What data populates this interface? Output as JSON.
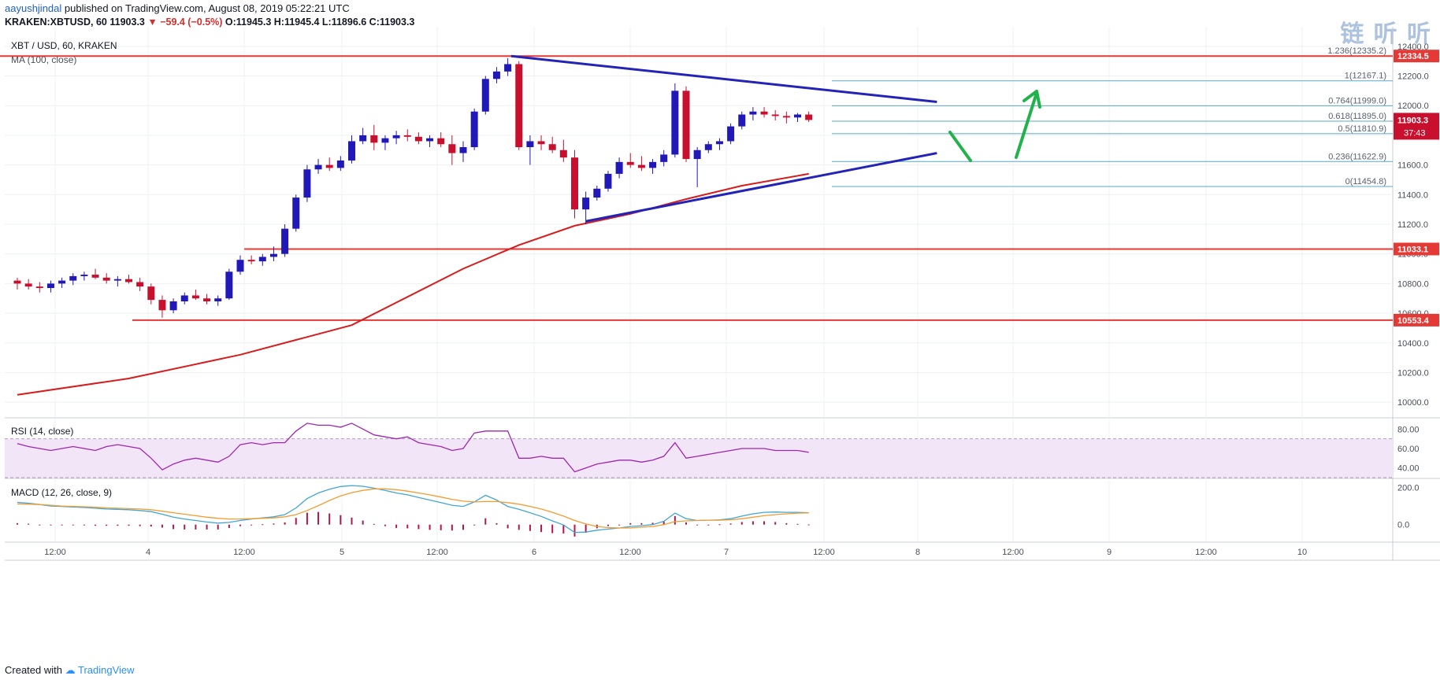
{
  "header": {
    "author": "aayushjindal",
    "published_text": "published on TradingView.com, August 08, 2019 05:22:21 UTC",
    "symbol_line": "KRAKEN:XBTUSD, 60",
    "last": "11903.3",
    "change": "▼ −59.4 (−0.5%)",
    "ohlc": "O:11945.3 H:11945.4 L:11896.6 C:11903.3"
  },
  "watermark": "链 听 听",
  "footer": {
    "created_with": "Created with",
    "brand": "TradingView"
  },
  "colors": {
    "up": "#2118b8",
    "down": "#c8102e",
    "ma": "#d81c1c",
    "trendline": "#2323b8",
    "hline": "#e53935",
    "fib": "#5aa9c8",
    "arrow": "#22b24c",
    "rsi_band": "#f3e5f8",
    "rsi_line": "#9c27b0",
    "macd": "#42a5d6",
    "signal": "#f39c32",
    "hist": "#b0184d"
  },
  "chart_data": {
    "type": "candlestick",
    "main_pane": {
      "title": "XBT / USD, 60, KRAKEN",
      "indicator": "MA (100, close)",
      "ylim": [
        9900,
        12500
      ],
      "y_ticks": [
        "10000.0",
        "10200.0",
        "10400.0",
        "10600.0",
        "10800.0",
        "11000.0",
        "11200.0",
        "11400.0",
        "11600.0",
        "11800.0",
        "12000.0",
        "12200.0",
        "12400.0"
      ],
      "x_ticks": [
        "12:00",
        "4",
        "12:00",
        "5",
        "12:00",
        "6",
        "12:00",
        "7",
        "12:00",
        "8",
        "12:00",
        "9",
        "12:00",
        "10"
      ],
      "last_price_label": "11903.3",
      "countdown_label": "37:43",
      "ohlc_pattern": [
        [
          10820,
          10840,
          10760,
          10800
        ],
        [
          10800,
          10830,
          10760,
          10780
        ],
        [
          10780,
          10810,
          10740,
          10770
        ],
        [
          10770,
          10820,
          10740,
          10800
        ],
        [
          10800,
          10840,
          10770,
          10820
        ],
        [
          10820,
          10870,
          10790,
          10850
        ],
        [
          10850,
          10880,
          10820,
          10860
        ],
        [
          10860,
          10900,
          10830,
          10840
        ],
        [
          10840,
          10870,
          10800,
          10820
        ],
        [
          10820,
          10850,
          10780,
          10830
        ],
        [
          10830,
          10860,
          10800,
          10810
        ],
        [
          10810,
          10840,
          10750,
          10780
        ],
        [
          10780,
          10800,
          10660,
          10690
        ],
        [
          10690,
          10720,
          10570,
          10620
        ],
        [
          10620,
          10700,
          10600,
          10680
        ],
        [
          10680,
          10740,
          10660,
          10720
        ],
        [
          10720,
          10760,
          10690,
          10700
        ],
        [
          10700,
          10730,
          10660,
          10680
        ],
        [
          10680,
          10720,
          10650,
          10700
        ],
        [
          10700,
          10900,
          10690,
          10880
        ],
        [
          10880,
          10990,
          10860,
          10960
        ],
        [
          10960,
          10990,
          10930,
          10950
        ],
        [
          10950,
          11000,
          10920,
          10980
        ],
        [
          10980,
          11050,
          10950,
          11000
        ],
        [
          11000,
          11200,
          10980,
          11170
        ],
        [
          11170,
          11400,
          11150,
          11380
        ],
        [
          11380,
          11600,
          11350,
          11570
        ],
        [
          11570,
          11640,
          11540,
          11600
        ],
        [
          11600,
          11650,
          11560,
          11580
        ],
        [
          11580,
          11660,
          11560,
          11630
        ],
        [
          11630,
          11800,
          11610,
          11760
        ],
        [
          11760,
          11850,
          11740,
          11800
        ],
        [
          11800,
          11870,
          11700,
          11750
        ],
        [
          11750,
          11800,
          11700,
          11780
        ],
        [
          11780,
          11830,
          11740,
          11800
        ],
        [
          11800,
          11840,
          11760,
          11790
        ],
        [
          11790,
          11820,
          11740,
          11760
        ],
        [
          11760,
          11800,
          11720,
          11780
        ],
        [
          11780,
          11820,
          11720,
          11740
        ],
        [
          11740,
          11800,
          11600,
          11680
        ],
        [
          11680,
          11760,
          11620,
          11720
        ],
        [
          11720,
          11980,
          11700,
          11960
        ],
        [
          11960,
          12200,
          11940,
          12180
        ],
        [
          12180,
          12260,
          12150,
          12230
        ],
        [
          12230,
          12320,
          12200,
          12280
        ],
        [
          12280,
          12300,
          11700,
          11720
        ],
        [
          11720,
          11800,
          11600,
          11760
        ],
        [
          11760,
          11800,
          11700,
          11740
        ],
        [
          11740,
          11790,
          11680,
          11700
        ],
        [
          11700,
          11770,
          11620,
          11650
        ],
        [
          11650,
          11700,
          11240,
          11300
        ],
        [
          11300,
          11420,
          11200,
          11380
        ],
        [
          11380,
          11460,
          11360,
          11440
        ],
        [
          11440,
          11560,
          11420,
          11540
        ],
        [
          11540,
          11650,
          11510,
          11620
        ],
        [
          11620,
          11680,
          11580,
          11600
        ],
        [
          11600,
          11660,
          11560,
          11580
        ],
        [
          11580,
          11640,
          11540,
          11620
        ],
        [
          11620,
          11700,
          11590,
          11670
        ],
        [
          11670,
          12150,
          11650,
          12100
        ],
        [
          12100,
          12130,
          11620,
          11640
        ],
        [
          11640,
          11720,
          11450,
          11700
        ],
        [
          11700,
          11760,
          11680,
          11740
        ],
        [
          11740,
          11780,
          11700,
          11760
        ],
        [
          11760,
          11880,
          11740,
          11860
        ],
        [
          11860,
          11960,
          11840,
          11940
        ],
        [
          11940,
          11990,
          11900,
          11960
        ],
        [
          11960,
          11990,
          11920,
          11940
        ],
        [
          11940,
          11970,
          11900,
          11930
        ],
        [
          11930,
          11960,
          11880,
          11920
        ],
        [
          11920,
          11950,
          11890,
          11940
        ],
        [
          11940,
          11960,
          11890,
          11903.3
        ]
      ],
      "ma100_keypoints": [
        [
          0,
          10050
        ],
        [
          10,
          10160
        ],
        [
          20,
          10320
        ],
        [
          30,
          10520
        ],
        [
          40,
          10900
        ],
        [
          45,
          11060
        ],
        [
          50,
          11190
        ],
        [
          55,
          11270
        ],
        [
          60,
          11370
        ],
        [
          65,
          11460
        ],
        [
          71,
          11540
        ]
      ],
      "horizontal_levels": [
        {
          "value": 12334.5,
          "label": "12334.5"
        },
        {
          "value": 11033.1,
          "label": "11033.1"
        },
        {
          "value": 10553.4,
          "label": "10553.4"
        }
      ],
      "fib_levels": [
        {
          "ratio_label": "1.236(12335.2)",
          "value": 12335.2
        },
        {
          "ratio_label": "1(12167.1)",
          "value": 12167.1
        },
        {
          "ratio_label": "0.764(11999.0)",
          "value": 11999.0
        },
        {
          "ratio_label": "0.618(11895.0)",
          "value": 11895.0
        },
        {
          "ratio_label": "0.5(11810.9)",
          "value": 11810.9
        },
        {
          "ratio_label": "0.236(11622.9)",
          "value": 11622.9
        },
        {
          "ratio_label": "0(11454.8)",
          "value": 11454.8
        }
      ],
      "trendlines": [
        {
          "name": "upper",
          "from": [
            44.3,
            12334
          ],
          "to": [
            82.5,
            12025
          ]
        },
        {
          "name": "lower",
          "from": [
            51,
            11220
          ],
          "to": [
            82.5,
            11680
          ]
        }
      ]
    },
    "rsi_pane": {
      "title": "RSI (14, close)",
      "ylim": [
        30,
        90
      ],
      "y_ticks": [
        "40.00",
        "60.00",
        "80.00"
      ],
      "values": [
        65,
        62,
        60,
        58,
        60,
        62,
        60,
        58,
        62,
        64,
        62,
        60,
        50,
        38,
        44,
        48,
        50,
        48,
        46,
        52,
        64,
        66,
        64,
        66,
        66,
        78,
        86,
        84,
        84,
        82,
        86,
        80,
        74,
        72,
        70,
        72,
        66,
        64,
        62,
        58,
        60,
        76,
        78,
        78,
        78,
        50,
        50,
        52,
        50,
        50,
        36,
        40,
        44,
        46,
        48,
        48,
        46,
        48,
        52,
        66,
        50,
        52,
        54,
        56,
        58,
        60,
        60,
        60,
        58,
        58,
        58,
        56
      ]
    },
    "macd_pane": {
      "title": "MACD (12, 26, close, 9)",
      "ylim": [
        -90,
        240
      ],
      "y_ticks": [
        "0.0",
        "200.0"
      ],
      "macd": [
        120,
        115,
        108,
        100,
        98,
        95,
        92,
        88,
        84,
        82,
        80,
        76,
        70,
        56,
        40,
        30,
        22,
        14,
        8,
        12,
        22,
        30,
        36,
        42,
        54,
        90,
        140,
        170,
        190,
        205,
        210,
        206,
        196,
        184,
        170,
        160,
        146,
        132,
        118,
        104,
        98,
        122,
        158,
        132,
        98,
        82,
        64,
        44,
        20,
        -2,
        -42,
        -40,
        -30,
        -24,
        -18,
        -10,
        -6,
        0,
        18,
        62,
        32,
        22,
        24,
        26,
        32,
        46,
        58,
        66,
        68,
        66,
        66,
        64
      ],
      "signal": [
        112,
        110,
        108,
        104,
        100,
        98,
        96,
        94,
        90,
        88,
        86,
        84,
        80,
        72,
        64,
        56,
        48,
        40,
        34,
        30,
        30,
        32,
        34,
        36,
        42,
        54,
        76,
        102,
        130,
        154,
        172,
        184,
        192,
        192,
        188,
        180,
        170,
        160,
        148,
        136,
        126,
        122,
        124,
        124,
        118,
        110,
        98,
        84,
        66,
        46,
        22,
        4,
        -10,
        -16,
        -18,
        -18,
        -14,
        -10,
        0,
        16,
        20,
        22,
        24,
        24,
        26,
        32,
        40,
        48,
        54,
        58,
        62,
        63
      ],
      "hist_scale": 1.0
    }
  }
}
